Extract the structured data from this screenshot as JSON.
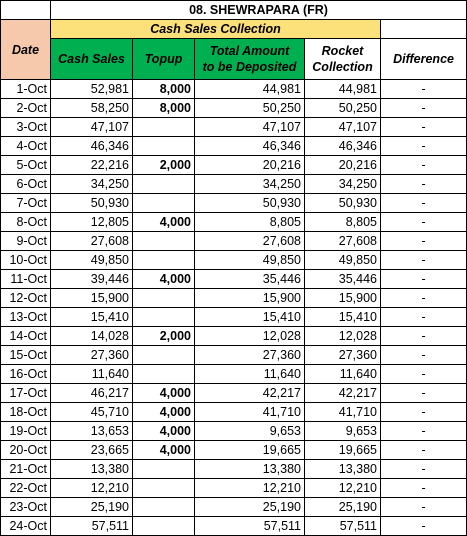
{
  "title": "08. SHEWRAPARA (FR)",
  "subheader": "Cash Sales Collection",
  "columns": {
    "date": "Date",
    "cash_sales": "Cash Sales",
    "topup": "Topup",
    "total_line1": "Total Amount",
    "total_line2": "to be Deposited",
    "rocket_line1": "Rocket",
    "rocket_line2": "Collection",
    "difference": "Difference"
  },
  "rows": [
    {
      "date": "1-Oct",
      "cash": "52,981",
      "topup": "8,000",
      "total": "44,981",
      "rocket": "44,981",
      "diff": "-"
    },
    {
      "date": "2-Oct",
      "cash": "58,250",
      "topup": "8,000",
      "total": "50,250",
      "rocket": "50,250",
      "diff": "-"
    },
    {
      "date": "3-Oct",
      "cash": "47,107",
      "topup": "",
      "total": "47,107",
      "rocket": "47,107",
      "diff": "-"
    },
    {
      "date": "4-Oct",
      "cash": "46,346",
      "topup": "",
      "total": "46,346",
      "rocket": "46,346",
      "diff": "-"
    },
    {
      "date": "5-Oct",
      "cash": "22,216",
      "topup": "2,000",
      "total": "20,216",
      "rocket": "20,216",
      "diff": "-"
    },
    {
      "date": "6-Oct",
      "cash": "34,250",
      "topup": "",
      "total": "34,250",
      "rocket": "34,250",
      "diff": "-"
    },
    {
      "date": "7-Oct",
      "cash": "50,930",
      "topup": "",
      "total": "50,930",
      "rocket": "50,930",
      "diff": "-"
    },
    {
      "date": "8-Oct",
      "cash": "12,805",
      "topup": "4,000",
      "total": "8,805",
      "rocket": "8,805",
      "diff": "-"
    },
    {
      "date": "9-Oct",
      "cash": "27,608",
      "topup": "",
      "total": "27,608",
      "rocket": "27,608",
      "diff": "-"
    },
    {
      "date": "10-Oct",
      "cash": "49,850",
      "topup": "",
      "total": "49,850",
      "rocket": "49,850",
      "diff": "-"
    },
    {
      "date": "11-Oct",
      "cash": "39,446",
      "topup": "4,000",
      "total": "35,446",
      "rocket": "35,446",
      "diff": "-"
    },
    {
      "date": "12-Oct",
      "cash": "15,900",
      "topup": "",
      "total": "15,900",
      "rocket": "15,900",
      "diff": "-"
    },
    {
      "date": "13-Oct",
      "cash": "15,410",
      "topup": "",
      "total": "15,410",
      "rocket": "15,410",
      "diff": "-"
    },
    {
      "date": "14-Oct",
      "cash": "14,028",
      "topup": "2,000",
      "total": "12,028",
      "rocket": "12,028",
      "diff": "-"
    },
    {
      "date": "15-Oct",
      "cash": "27,360",
      "topup": "",
      "total": "27,360",
      "rocket": "27,360",
      "diff": "-"
    },
    {
      "date": "16-Oct",
      "cash": "11,640",
      "topup": "",
      "total": "11,640",
      "rocket": "11,640",
      "diff": "-"
    },
    {
      "date": "17-Oct",
      "cash": "46,217",
      "topup": "4,000",
      "total": "42,217",
      "rocket": "42,217",
      "diff": "-"
    },
    {
      "date": "18-Oct",
      "cash": "45,710",
      "topup": "4,000",
      "total": "41,710",
      "rocket": "41,710",
      "diff": "-"
    },
    {
      "date": "19-Oct",
      "cash": "13,653",
      "topup": "4,000",
      "total": "9,653",
      "rocket": "9,653",
      "diff": "-"
    },
    {
      "date": "20-Oct",
      "cash": "23,665",
      "topup": "4,000",
      "total": "19,665",
      "rocket": "19,665",
      "diff": "-"
    },
    {
      "date": "21-Oct",
      "cash": "13,380",
      "topup": "",
      "total": "13,380",
      "rocket": "13,380",
      "diff": "-"
    },
    {
      "date": "22-Oct",
      "cash": "12,210",
      "topup": "",
      "total": "12,210",
      "rocket": "12,210",
      "diff": "-"
    },
    {
      "date": "23-Oct",
      "cash": "25,190",
      "topup": "",
      "total": "25,190",
      "rocket": "25,190",
      "diff": "-"
    },
    {
      "date": "24-Oct",
      "cash": "57,511",
      "topup": "",
      "total": "57,511",
      "rocket": "57,511",
      "diff": "-"
    }
  ],
  "colors": {
    "header_green": "#00b050",
    "subheader_yellow": "#fce07a",
    "date_header": "#f6c9ad",
    "topup_text": "#ed7d31"
  }
}
